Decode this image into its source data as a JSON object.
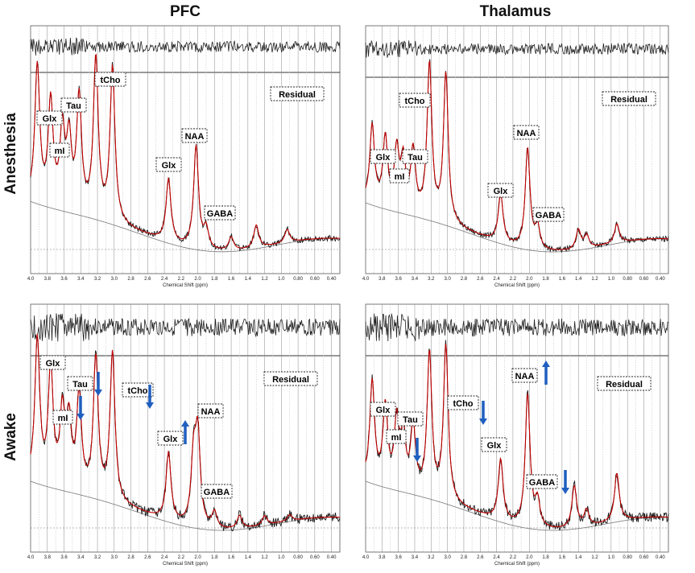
{
  "titles": {
    "columns": [
      "PFC",
      "Thalamus"
    ],
    "rows": [
      "Anesthesia",
      "Awake"
    ]
  },
  "colors": {
    "spectrum": "#1a1a1a",
    "fit": "#c00000",
    "baseline": "#777777",
    "arrow": "#1f5fbf"
  },
  "chart_data": [
    {
      "type": "line",
      "region": "PFC",
      "state": "Anesthesia",
      "xlabel": "Chemical Shift (ppm)",
      "xlim": [
        4.0,
        0.3
      ],
      "x_ticks": [
        "4.0",
        "3.8",
        "3.6",
        "3.4",
        "3.2",
        "3.0",
        "2.8",
        "2.6",
        "2.4",
        "2.2",
        "2.0",
        "1.8",
        "1.6",
        "1.4",
        "1.2",
        "1.0",
        "0.80",
        "0.60",
        "0.40"
      ],
      "series": [
        {
          "name": "Residual"
        },
        {
          "peaks": [
            [
              3.92,
              0.82
            ],
            [
              3.76,
              0.62
            ],
            [
              3.62,
              0.45
            ],
            [
              3.54,
              0.4
            ],
            [
              3.42,
              0.68
            ],
            [
              3.22,
              0.95
            ],
            [
              3.02,
              0.93
            ],
            [
              2.35,
              0.38
            ],
            [
              2.02,
              0.62
            ],
            [
              1.9,
              0.12
            ],
            [
              1.6,
              0.08
            ],
            [
              1.3,
              0.14
            ],
            [
              0.93,
              0.08
            ]
          ]
        }
      ],
      "labels": [
        {
          "text": "Glx",
          "ppm": 3.76
        },
        {
          "text": "mI",
          "ppm": 3.55
        },
        {
          "text": "Tau",
          "ppm": 3.42
        },
        {
          "text": "tCho",
          "ppm": 3.22
        },
        {
          "text": "Glx",
          "ppm": 2.35
        },
        {
          "text": "NAA",
          "ppm": 2.02
        },
        {
          "text": "GABA",
          "ppm": 1.9
        },
        {
          "text": "Residual",
          "ppm": 0.6
        }
      ],
      "arrows": []
    },
    {
      "type": "line",
      "region": "Thalamus",
      "state": "Anesthesia",
      "xlabel": "Chemical Shift (ppm)",
      "xlim": [
        4.0,
        0.3
      ],
      "x_ticks": [
        "4.0",
        "3.8",
        "3.6",
        "3.4",
        "3.2",
        "3.0",
        "2.8",
        "2.6",
        "2.4",
        "2.2",
        "2.0",
        "1.8",
        "1.6",
        "1.4",
        "1.2",
        "1.0",
        "0.80",
        "0.60",
        "0.40"
      ],
      "series": [
        {
          "name": "Residual"
        },
        {
          "peaks": [
            [
              3.92,
              0.48
            ],
            [
              3.76,
              0.42
            ],
            [
              3.62,
              0.35
            ],
            [
              3.54,
              0.3
            ],
            [
              3.42,
              0.38
            ],
            [
              3.22,
              0.95
            ],
            [
              3.02,
              0.92
            ],
            [
              2.35,
              0.3
            ],
            [
              2.02,
              0.62
            ],
            [
              1.9,
              0.14
            ],
            [
              1.4,
              0.12
            ],
            [
              1.3,
              0.08
            ],
            [
              0.93,
              0.12
            ]
          ]
        }
      ],
      "labels": [
        {
          "text": "Glx",
          "ppm": 3.76
        },
        {
          "text": "mI",
          "ppm": 3.62
        },
        {
          "text": "Tau",
          "ppm": 3.42
        },
        {
          "text": "tCho",
          "ppm": 3.22
        },
        {
          "text": "Glx",
          "ppm": 2.35
        },
        {
          "text": "NAA",
          "ppm": 2.02
        },
        {
          "text": "GABA",
          "ppm": 1.9
        },
        {
          "text": "Residual",
          "ppm": 0.6
        }
      ],
      "arrows": []
    },
    {
      "type": "line",
      "region": "PFC",
      "state": "Awake",
      "xlabel": "Chemical Shift (ppm)",
      "xlim": [
        4.0,
        0.3
      ],
      "x_ticks": [
        "4.0",
        "3.8",
        "3.6",
        "3.4",
        "3.2",
        "3.0",
        "2.8",
        "2.6",
        "2.4",
        "2.2",
        "2.0",
        "1.8",
        "1.6",
        "1.4",
        "1.2",
        "1.0",
        "0.80",
        "0.60",
        "0.40"
      ],
      "series": [
        {
          "name": "Residual"
        },
        {
          "peaks": [
            [
              3.92,
              0.88
            ],
            [
              3.76,
              0.72
            ],
            [
              3.62,
              0.45
            ],
            [
              3.54,
              0.4
            ],
            [
              3.42,
              0.58
            ],
            [
              3.22,
              0.85
            ],
            [
              3.02,
              0.92
            ],
            [
              2.35,
              0.42
            ],
            [
              2.05,
              0.4
            ],
            [
              2.0,
              0.55
            ],
            [
              1.8,
              0.1
            ],
            [
              1.5,
              0.08
            ],
            [
              1.2,
              0.06
            ],
            [
              0.9,
              0.04
            ]
          ]
        }
      ],
      "labels": [
        {
          "text": "Glx",
          "ppm": 3.76
        },
        {
          "text": "mI",
          "ppm": 3.55
        },
        {
          "text": "Tau",
          "ppm": 3.42
        },
        {
          "text": "tCho",
          "ppm": 3.22
        },
        {
          "text": "Glx",
          "ppm": 2.35
        },
        {
          "text": "NAA",
          "ppm": 2.02
        },
        {
          "text": "GABA",
          "ppm": 1.9
        },
        {
          "text": "Residual",
          "ppm": 0.6
        }
      ],
      "arrows": [
        {
          "direction": "down",
          "ppm": 3.42
        },
        {
          "direction": "down",
          "ppm": 3.13
        },
        {
          "direction": "down",
          "ppm": 2.48
        },
        {
          "direction": "up",
          "ppm": 2.05
        }
      ]
    },
    {
      "type": "line",
      "region": "Thalamus",
      "state": "Awake",
      "xlabel": "Chemical Shift (ppm)",
      "xlim": [
        4.0,
        0.3
      ],
      "x_ticks": [
        "4.0",
        "3.8",
        "3.6",
        "3.4",
        "3.2",
        "3.0",
        "2.8",
        "2.6",
        "2.4",
        "2.2",
        "2.0",
        "1.8",
        "1.6",
        "1.4",
        "1.2",
        "1.0",
        "0.80",
        "0.60",
        "0.40"
      ],
      "series": [
        {
          "name": "Residual"
        },
        {
          "peaks": [
            [
              3.92,
              0.62
            ],
            [
              3.76,
              0.48
            ],
            [
              3.62,
              0.4
            ],
            [
              3.54,
              0.32
            ],
            [
              3.42,
              0.4
            ],
            [
              3.22,
              0.88
            ],
            [
              3.02,
              0.96
            ],
            [
              2.35,
              0.38
            ],
            [
              2.02,
              0.82
            ],
            [
              1.9,
              0.16
            ],
            [
              1.45,
              0.26
            ],
            [
              1.3,
              0.1
            ],
            [
              0.93,
              0.3
            ]
          ]
        }
      ],
      "labels": [
        {
          "text": "Glx",
          "ppm": 3.76
        },
        {
          "text": "mI",
          "ppm": 3.62
        },
        {
          "text": "Tau",
          "ppm": 3.42
        },
        {
          "text": "tCho",
          "ppm": 3.22
        },
        {
          "text": "Glx",
          "ppm": 2.35
        },
        {
          "text": "NAA",
          "ppm": 2.02
        },
        {
          "text": "GABA",
          "ppm": 1.9
        },
        {
          "text": "Residual",
          "ppm": 0.6
        }
      ],
      "arrows": [
        {
          "direction": "down",
          "ppm": 3.35
        },
        {
          "direction": "down",
          "ppm": 2.6
        },
        {
          "direction": "up",
          "ppm": 1.72
        },
        {
          "direction": "down",
          "ppm": 1.45
        }
      ]
    }
  ]
}
